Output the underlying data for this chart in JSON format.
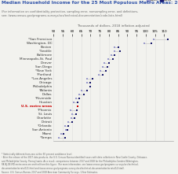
{
  "title": "Median Household Income for the 25 Most Populous Metro Areas: 2017 and 2018",
  "subtitle": "(For information on confidentiality protection, sampling error, nonsampling error, and definitions,\nsee: /www.census.gov/programs-surveys/acs/technical-documentation/code-lists.html)",
  "xlabel": "Thousands of dollars, 2018 inflation-adjusted",
  "legend_2017": "2017",
  "legend_2018": "2018",
  "xlim": [
    50,
    115
  ],
  "xticks": [
    50,
    55,
    60,
    65,
    70,
    75,
    80,
    85,
    90,
    95,
    100,
    105,
    110
  ],
  "footnote": "* Statistically different from zero at the 90 percent confidence level.\n¹ After the release of the 2017 data products, the U.S. Census Bureau identified issues with data collection in New Castle County, Delaware,\nand Philadelphia County, Pennsylvania. As a result, comparisons between 2017 and 2018 for the Philadelphia-Camden-Wilmington,\nPA-NJ-DE-MD metro area are omitted from this figure. (For more information, see /www.census.gov/programs-surveys/acs/technical-\ndocumentation/errata/121.html and /www.census.gov/programs-surveys/acs/technical-documentation/errata/14.html).\nSource: U.S. Census Bureau 2017 and 2018 American Community Surveys, 1-Year Estimates.",
  "areas": [
    {
      "name": "*San Francisco",
      "val2017": 104.5,
      "val2018": 112.0
    },
    {
      "name": "Washington, DC",
      "val2017": 99.0,
      "val2018": 103.0
    },
    {
      "name": "Boston",
      "val2017": 83.0,
      "val2018": 85.0
    },
    {
      "name": "*Seattle",
      "val2017": 83.0,
      "val2018": 86.0
    },
    {
      "name": "Baltimore",
      "val2017": 81.5,
      "val2018": 83.0
    },
    {
      "name": "Minneapolis-St. Paul",
      "val2017": 79.5,
      "val2018": 82.0
    },
    {
      "name": "Denver",
      "val2017": 77.5,
      "val2018": 80.0
    },
    {
      "name": "San Diego",
      "val2017": 76.5,
      "val2018": 79.0
    },
    {
      "name": "*New York",
      "val2017": 75.5,
      "val2018": 78.5
    },
    {
      "name": "*Portland",
      "val2017": 74.5,
      "val2018": 76.5
    },
    {
      "name": "*Los Angeles",
      "val2017": 68.0,
      "val2018": 71.0
    },
    {
      "name": "Chicago",
      "val2017": 68.0,
      "val2018": 70.0
    },
    {
      "name": "Philadelphia",
      "val2017": null,
      "val2018": 70.0
    },
    {
      "name": "*Atlanta",
      "val2017": 65.0,
      "val2018": 68.0
    },
    {
      "name": "Dallas",
      "val2017": 64.0,
      "val2018": 66.5
    },
    {
      "name": "*Riverside",
      "val2017": 62.0,
      "val2018": 64.0
    },
    {
      "name": "Houston",
      "val2017": 61.0,
      "val2018": 63.0
    },
    {
      "name": "U.S. metro areas",
      "val2017": null,
      "val2018": 63.0,
      "highlight": true
    },
    {
      "name": "*Phoenix",
      "val2017": 59.0,
      "val2018": 62.5
    },
    {
      "name": "St. Louis",
      "val2017": 60.0,
      "val2018": 62.0
    },
    {
      "name": "Charlotte",
      "val2017": 59.5,
      "val2018": 61.5
    },
    {
      "name": "Detroit",
      "val2017": 58.0,
      "val2018": 60.0
    },
    {
      "name": "*Orlando",
      "val2017": 56.0,
      "val2018": 58.0
    },
    {
      "name": "San Antonio",
      "val2017": 56.5,
      "val2018": 57.5
    },
    {
      "name": "Miami",
      "val2017": 54.0,
      "val2018": 55.5
    },
    {
      "name": "*Tampa",
      "val2017": 53.0,
      "val2018": 56.0
    }
  ],
  "color_2017": "#9999cc",
  "color_2018": "#1a1a6e",
  "color_highlight": "#cc0000",
  "bg_color": "#f2f2ee",
  "title_color": "#3355aa",
  "subtitle_color": "#666666",
  "label_color": "#333333",
  "grid_color": "#dddddd"
}
